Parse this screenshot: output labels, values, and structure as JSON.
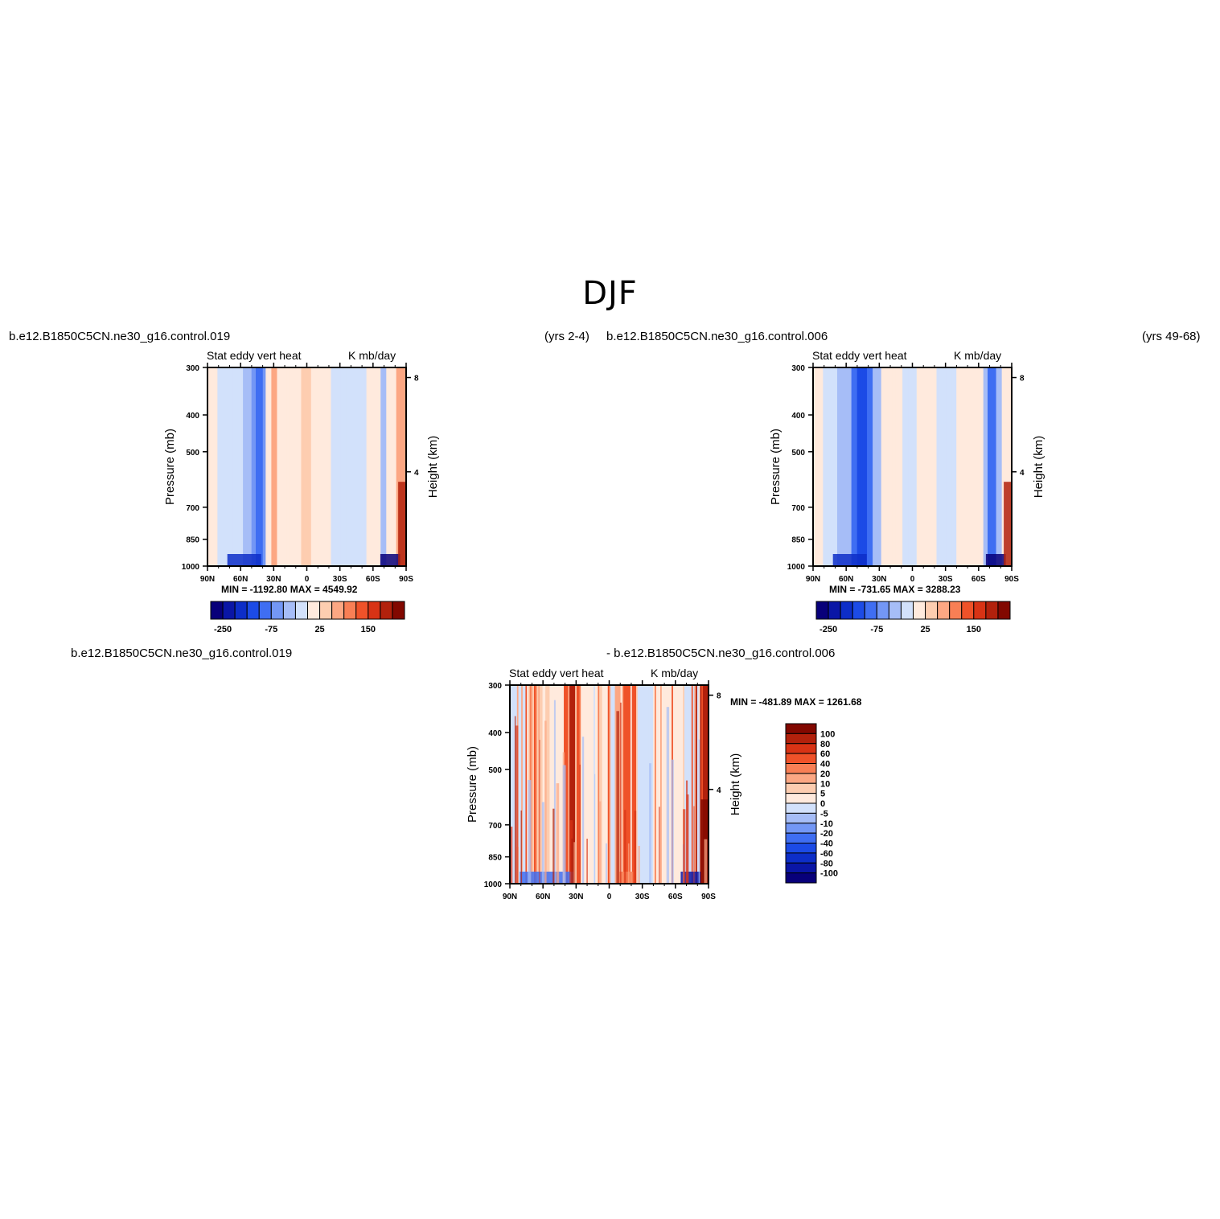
{
  "title": "DJF",
  "panels": [
    {
      "case_left": "b.e12.B1850C5CN.ne30_g16.control.019",
      "case_right": "(yrs 2-4)",
      "subtitle_left": "Stat eddy vert heat",
      "subtitle_right": "K mb/day",
      "min_max": "MIN = -1192.80   MAX = 4549.92"
    },
    {
      "case_left": "b.e12.B1850C5CN.ne30_g16.control.006",
      "case_right": "(yrs 49-68)",
      "subtitle_left": "Stat eddy vert heat",
      "subtitle_right": "K mb/day",
      "min_max": "MIN = -731.65   MAX = 3288.23"
    },
    {
      "case_left": "b.e12.B1850C5CN.ne30_g16.control.019",
      "case_right": "- b.e12.B1850C5CN.ne30_g16.control.006",
      "subtitle_left": "Stat eddy vert heat",
      "subtitle_right": "K mb/day",
      "min_max": "MIN = -481.89   MAX = 1261.68"
    }
  ],
  "chart_data": [
    {
      "type": "heatmap",
      "ylabel": "Pressure (mb)",
      "ylabel_right": "Height (km)",
      "x_ticks": [
        "90N",
        "60N",
        "30N",
        "0",
        "30S",
        "60S",
        "90S"
      ],
      "y_ticks": [
        "300",
        "400",
        "500",
        "700",
        "850",
        "1000"
      ],
      "y_right_ticks": [
        "8",
        "4"
      ],
      "colorbar": {
        "orientation": "horizontal",
        "labels": [
          "-250",
          "-75",
          "25",
          "150"
        ],
        "colors": [
          "#08007a",
          "#0a16a6",
          "#0d2ec8",
          "#1c4be6",
          "#3f6ef2",
          "#7397f5",
          "#a6bdf7",
          "#d2e1fb",
          "#ffeadd",
          "#fdcdb0",
          "#fca783",
          "#f87f55",
          "#ef5229",
          "#d83315",
          "#b2210c",
          "#820800"
        ]
      }
    },
    {
      "type": "heatmap",
      "ylabel": "Pressure (mb)",
      "ylabel_right": "Height (km)",
      "x_ticks": [
        "90N",
        "60N",
        "30N",
        "0",
        "30S",
        "60S",
        "90S"
      ],
      "y_ticks": [
        "300",
        "400",
        "500",
        "700",
        "850",
        "1000"
      ],
      "y_right_ticks": [
        "8",
        "4"
      ],
      "colorbar": {
        "orientation": "horizontal",
        "labels": [
          "-250",
          "-75",
          "25",
          "150"
        ],
        "colors": [
          "#08007a",
          "#0a16a6",
          "#0d2ec8",
          "#1c4be6",
          "#3f6ef2",
          "#7397f5",
          "#a6bdf7",
          "#d2e1fb",
          "#ffeadd",
          "#fdcdb0",
          "#fca783",
          "#f87f55",
          "#ef5229",
          "#d83315",
          "#b2210c",
          "#820800"
        ]
      }
    },
    {
      "type": "heatmap",
      "ylabel": "Pressure (mb)",
      "ylabel_right": "Height (km)",
      "x_ticks": [
        "90N",
        "60N",
        "30N",
        "0",
        "30S",
        "60S",
        "90S"
      ],
      "y_ticks": [
        "300",
        "400",
        "500",
        "700",
        "850",
        "1000"
      ],
      "y_right_ticks": [
        "8",
        "4"
      ],
      "colorbar": {
        "orientation": "vertical",
        "labels": [
          "100",
          "80",
          "60",
          "40",
          "20",
          "10",
          "5",
          "0",
          "-5",
          "-10",
          "-20",
          "-40",
          "-60",
          "-80",
          "-100"
        ],
        "colors": [
          "#820800",
          "#b2210c",
          "#d83315",
          "#ef5229",
          "#f87f55",
          "#fca783",
          "#fdcdb0",
          "#ffeadd",
          "#d2e1fb",
          "#a6bdf7",
          "#7397f5",
          "#3f6ef2",
          "#1c4be6",
          "#0d2ec8",
          "#0a16a6",
          "#08007a"
        ]
      }
    }
  ]
}
